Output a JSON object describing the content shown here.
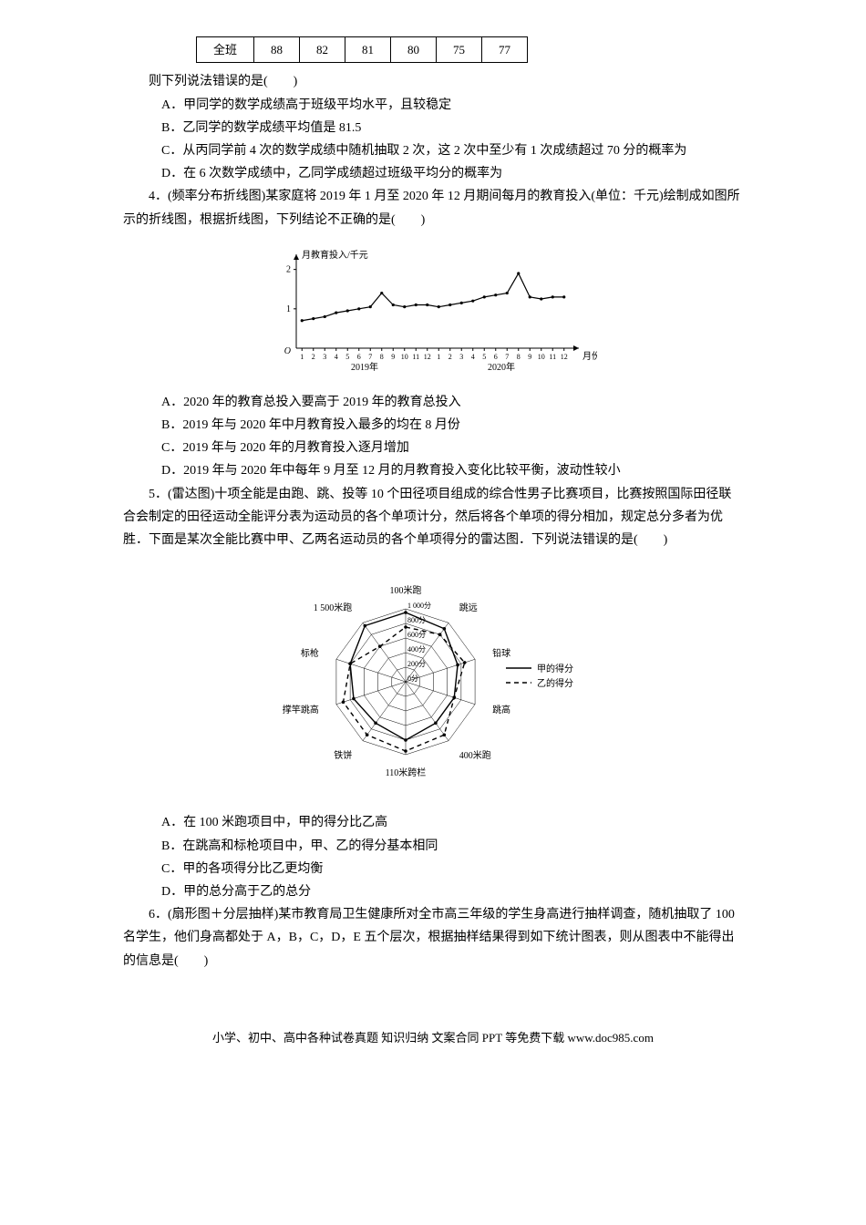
{
  "table": {
    "row_header": "全班",
    "cells": [
      "88",
      "82",
      "81",
      "80",
      "75",
      "77"
    ]
  },
  "pre_table": {
    "stem": "则下列说法错误的是(　　)",
    "A": "A．甲同学的数学成绩高于班级平均水平，且较稳定",
    "B": "B．乙同学的数学成绩平均值是 81.5",
    "C": "C．从丙同学前 4 次的数学成绩中随机抽取 2 次，这 2 次中至少有 1 次成绩超过 70 分的概率为",
    "D": "D．在 6 次数学成绩中，乙同学成绩超过班级平均分的概率为"
  },
  "q4": {
    "stem": "4．(频率分布折线图)某家庭将 2019 年 1 月至 2020 年 12 月期间每月的教育投入(单位：千元)绘制成如图所示的折线图，根据折线图，下列结论不正确的是(　　)",
    "A": "A．2020 年的教育总投入要高于 2019 年的教育总投入",
    "B": "B．2019 年与 2020 年中月教育投入最多的均在 8 月份",
    "C": "C．2019 年与 2020 年的月教育投入逐月增加",
    "D": "D．2019 年与 2020 年中每年 9 月至 12 月的月教育投入变化比较平衡，波动性较小",
    "chart": {
      "y_label": "月教育投入/千元",
      "y_ticks": [
        "1",
        "2"
      ],
      "x_ticks": [
        "1",
        "2",
        "3",
        "4",
        "5",
        "6",
        "7",
        "8",
        "9",
        "10",
        "11",
        "12",
        "1",
        "2",
        "3",
        "4",
        "5",
        "6",
        "7",
        "8",
        "9",
        "10",
        "11",
        "12"
      ],
      "x_group_left": "2019年",
      "x_group_right": "2020年",
      "x_unit": "月份",
      "y_max": 2.2,
      "points_2019": [
        0.7,
        0.75,
        0.8,
        0.9,
        0.95,
        1.0,
        1.05,
        1.4,
        1.1,
        1.05,
        1.1,
        1.1
      ],
      "points_2020": [
        1.05,
        1.1,
        1.15,
        1.2,
        1.3,
        1.35,
        1.4,
        1.9,
        1.3,
        1.25,
        1.3,
        1.3
      ],
      "line_color": "#000000",
      "axis_color": "#000000",
      "bg": "#ffffff",
      "font_size": 10
    }
  },
  "q5": {
    "stem": "5．(雷达图)十项全能是由跑、跳、投等 10 个田径项目组成的综合性男子比赛项目，比赛按照国际田径联合会制定的田径运动全能评分表为运动员的各个单项计分，然后将各个单项的得分相加，规定总分多者为优胜．下面是某次全能比赛中甲、乙两名运动员的各个单项得分的雷达图．下列说法错误的是(　　)",
    "A": "A．在 100 米跑项目中，甲的得分比乙高",
    "B": "B．在跳高和标枪项目中，甲、乙的得分基本相同",
    "C": "C．甲的各项得分比乙更均衡",
    "D": "D．甲的总分高于乙的总分",
    "chart": {
      "labels": [
        "100米跑",
        "跳远",
        "铅球",
        "跳高",
        "400米跑",
        "110米跨栏",
        "铁饼",
        "撑竿跳高",
        "标枪",
        "1 500米跑"
      ],
      "rings": [
        "0分",
        "200分",
        "400分",
        "600分",
        "800分",
        "1 000分"
      ],
      "r_max": 1000,
      "r_step": 200,
      "jia": [
        950,
        900,
        750,
        700,
        700,
        800,
        700,
        750,
        800,
        950
      ],
      "yi": [
        750,
        800,
        850,
        700,
        900,
        950,
        900,
        900,
        800,
        600
      ],
      "jia_color": "#000000",
      "yi_color": "#000000",
      "legend_jia": "甲的得分",
      "legend_yi": "乙的得分",
      "bg": "#ffffff",
      "font_size": 10
    }
  },
  "q6": {
    "stem": "6．(扇形图＋分层抽样)某市教育局卫生健康所对全市高三年级的学生身高进行抽样调查，随机抽取了 100 名学生，他们身高都处于 A，B，C，D，E 五个层次，根据抽样结果得到如下统计图表，则从图表中不能得出的信息是(　　)"
  },
  "footer": "小学、初中、高中各种试卷真题  知识归纳  文案合同  PPT 等免费下载  www.doc985.com"
}
